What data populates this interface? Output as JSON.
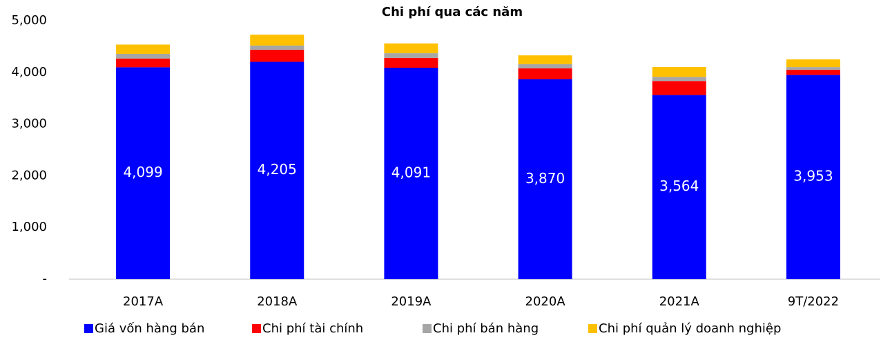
{
  "chart_data": {
    "type": "stacked_bar",
    "title": "Chi phí qua các năm",
    "categories": [
      "2017A",
      "2018A",
      "2019A",
      "2020A",
      "2021A",
      "9T/2022"
    ],
    "series": [
      {
        "name": "Giá vốn hàng bán",
        "color": "#0000ff",
        "values": [
          4099,
          4205,
          4091,
          3870,
          3564,
          3953
        ],
        "value_labels": [
          "4,099",
          "4,205",
          "4,091",
          "3,870",
          "3,564",
          "3,953"
        ]
      },
      {
        "name": "Chi phí tài chính",
        "color": "#ff0000",
        "values": [
          170,
          235,
          190,
          210,
          270,
          100
        ]
      },
      {
        "name": "Chi phí bán hàng",
        "color": "#a6a6a6",
        "values": [
          90,
          80,
          90,
          80,
          80,
          50
        ]
      },
      {
        "name": "Chi phí quản lý doanh nghiệp",
        "color": "#ffc000",
        "values": [
          180,
          210,
          190,
          170,
          190,
          150
        ]
      }
    ],
    "ylim": [
      0,
      5000
    ],
    "yticks": [
      {
        "value": 0,
        "label": "-"
      },
      {
        "value": 1000,
        "label": "1,000"
      },
      {
        "value": 2000,
        "label": "2,000"
      },
      {
        "value": 3000,
        "label": "3,000"
      },
      {
        "value": 4000,
        "label": "4,000"
      },
      {
        "value": 5000,
        "label": "5,000"
      }
    ],
    "grid": false,
    "legend": "bottom"
  }
}
